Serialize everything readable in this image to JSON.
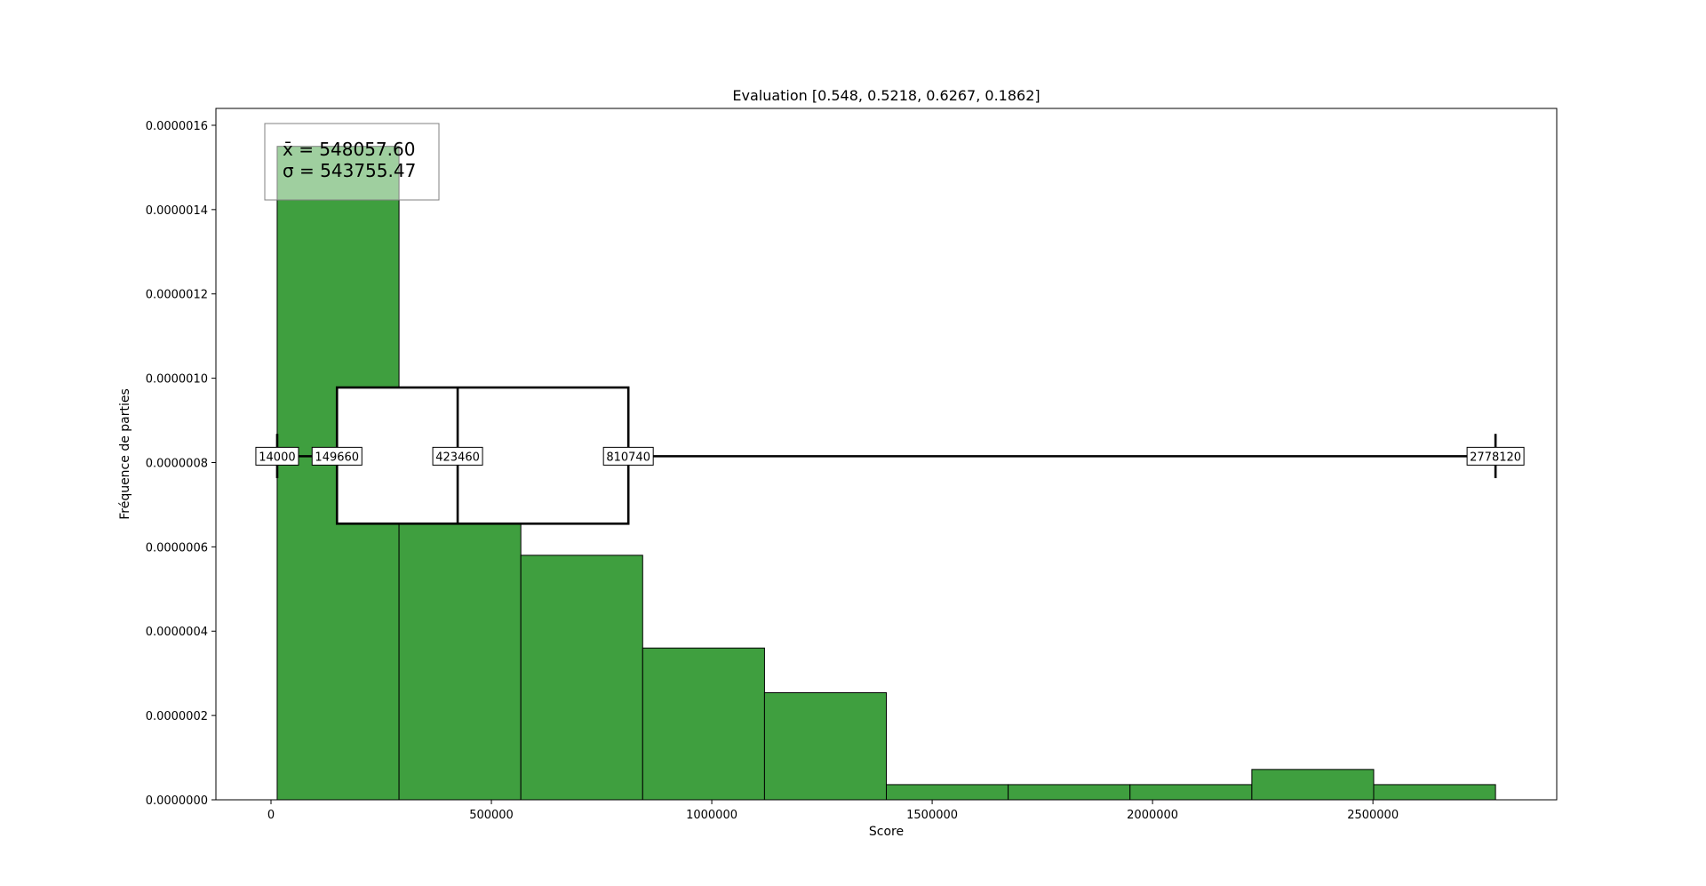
{
  "chart_data": {
    "type": "bar",
    "title": "Evaluation [0.548, 0.5218, 0.6267, 0.1862]",
    "xlabel": "Score",
    "ylabel": "Fréquence de parties",
    "xlim": [
      -125000,
      2917000
    ],
    "ylim": [
      0,
      1.64e-06
    ],
    "x_ticks": [
      0,
      500000,
      1000000,
      1500000,
      2000000,
      2500000
    ],
    "x_tick_labels": [
      "0",
      "500000",
      "1000000",
      "1500000",
      "2000000",
      "2500000"
    ],
    "y_ticks": [
      0,
      2e-07,
      4e-07,
      6e-07,
      8e-07,
      1e-06,
      1.2e-06,
      1.4e-06,
      1.6e-06
    ],
    "y_tick_labels": [
      "0.0000000",
      "0.0000002",
      "0.0000004",
      "0.0000006",
      "0.0000008",
      "0.0000010",
      "0.0000012",
      "0.0000014",
      "0.0000016"
    ],
    "bin_edges": [
      14000,
      290412,
      566824,
      843236,
      1119648,
      1396060,
      1672472,
      1948884,
      2225296,
      2501708,
      2778120
    ],
    "values": [
      1.55e-06,
      6.6e-07,
      5.8e-07,
      3.6e-07,
      2.54e-07,
      3.6e-08,
      3.6e-08,
      3.6e-08,
      7.2e-08,
      3.6e-08
    ],
    "bar_color": "#3f9f3f",
    "grid": false,
    "boxplot": {
      "min": 14000,
      "q1": 149660,
      "median": 423460,
      "q3": 810740,
      "max": 2778120,
      "labels": [
        "14000",
        "149660",
        "423460",
        "810740",
        "2778120"
      ],
      "center_y": 8.15e-07,
      "box_low": 6.55e-07,
      "box_high": 9.78e-07,
      "cap_low": 7.63e-07,
      "cap_high": 8.68e-07
    },
    "stats": {
      "mean_label": "x̄ = 548057.60",
      "sigma_label": "σ = 543755.47"
    }
  }
}
